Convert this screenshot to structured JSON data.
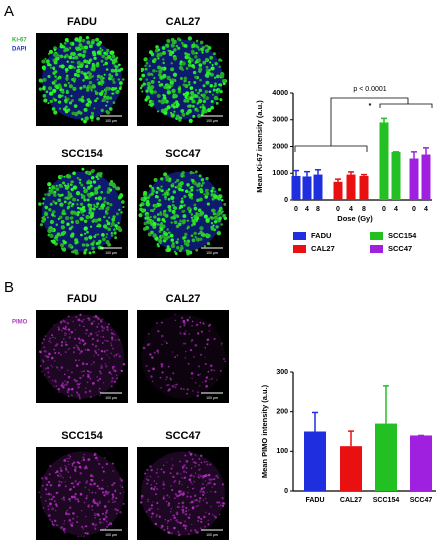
{
  "panels": [
    {
      "label": "A",
      "stain_labels": [
        "Ki-67",
        "DAPI"
      ],
      "images": [
        {
          "label": "FADU",
          "scale_bar": "100 μm"
        },
        {
          "label": "CAL27",
          "scale_bar": "100 μm"
        },
        {
          "label": "SCC154",
          "scale_bar": "100 μm"
        },
        {
          "label": "SCC47",
          "scale_bar": "100 μm"
        }
      ]
    },
    {
      "label": "B",
      "stain_labels": [
        "PIMO"
      ],
      "images": [
        {
          "label": "FADU",
          "scale_bar": "100 μm"
        },
        {
          "label": "CAL27",
          "scale_bar": "100 μm"
        },
        {
          "label": "SCC154",
          "scale_bar": "100 μm"
        },
        {
          "label": "SCC47",
          "scale_bar": "100 μm"
        }
      ]
    }
  ],
  "chart_data": [
    {
      "type": "bar",
      "y_label": "Mean Ki-67 intensity (a.u.)",
      "x_label": "Dose (Gy)",
      "categories": [
        "0",
        "4",
        "8",
        "0",
        "4",
        "8",
        "0",
        "4",
        "0",
        "4"
      ],
      "series": [
        {
          "name": "FADU",
          "color": "#1f2fe0",
          "values": [
            900,
            880,
            950,
            null,
            null,
            null,
            null,
            null,
            null,
            null
          ],
          "errors": [
            200,
            180,
            180,
            null,
            null,
            null,
            null,
            null,
            null,
            null
          ]
        },
        {
          "name": "CAL27",
          "color": "#e81010",
          "values": [
            null,
            null,
            null,
            680,
            950,
            900,
            null,
            null,
            null,
            null
          ],
          "errors": [
            null,
            null,
            null,
            100,
            100,
            50,
            null,
            null,
            null,
            null
          ]
        },
        {
          "name": "SCC154",
          "color": "#22c022",
          "values": [
            null,
            null,
            null,
            null,
            null,
            null,
            2900,
            1800,
            null,
            null
          ],
          "errors": [
            null,
            null,
            null,
            null,
            null,
            null,
            150,
            0,
            null,
            null
          ]
        },
        {
          "name": "SCC47",
          "color": "#a020e0",
          "values": [
            null,
            null,
            null,
            null,
            null,
            null,
            null,
            null,
            1550,
            1700
          ],
          "errors": [
            null,
            null,
            null,
            null,
            null,
            null,
            null,
            null,
            250,
            250
          ]
        }
      ],
      "ylim": [
        0,
        4000
      ],
      "yticks": [
        0,
        1000,
        2000,
        3000,
        4000
      ],
      "annotations": [
        "p < 0.0001",
        "*"
      ]
    },
    {
      "type": "bar",
      "y_label": "Mean PIMO intensity (a.u.)",
      "categories": [
        "FADU",
        "CAL27",
        "SCC154",
        "SCC47"
      ],
      "values": [
        150,
        113,
        170,
        140
      ],
      "errors": [
        48,
        38,
        95,
        0
      ],
      "colors": [
        "#1f2fe0",
        "#e81010",
        "#22c022",
        "#a020e0"
      ],
      "ylim": [
        0,
        300
      ],
      "yticks": [
        0,
        100,
        200,
        300
      ]
    }
  ]
}
